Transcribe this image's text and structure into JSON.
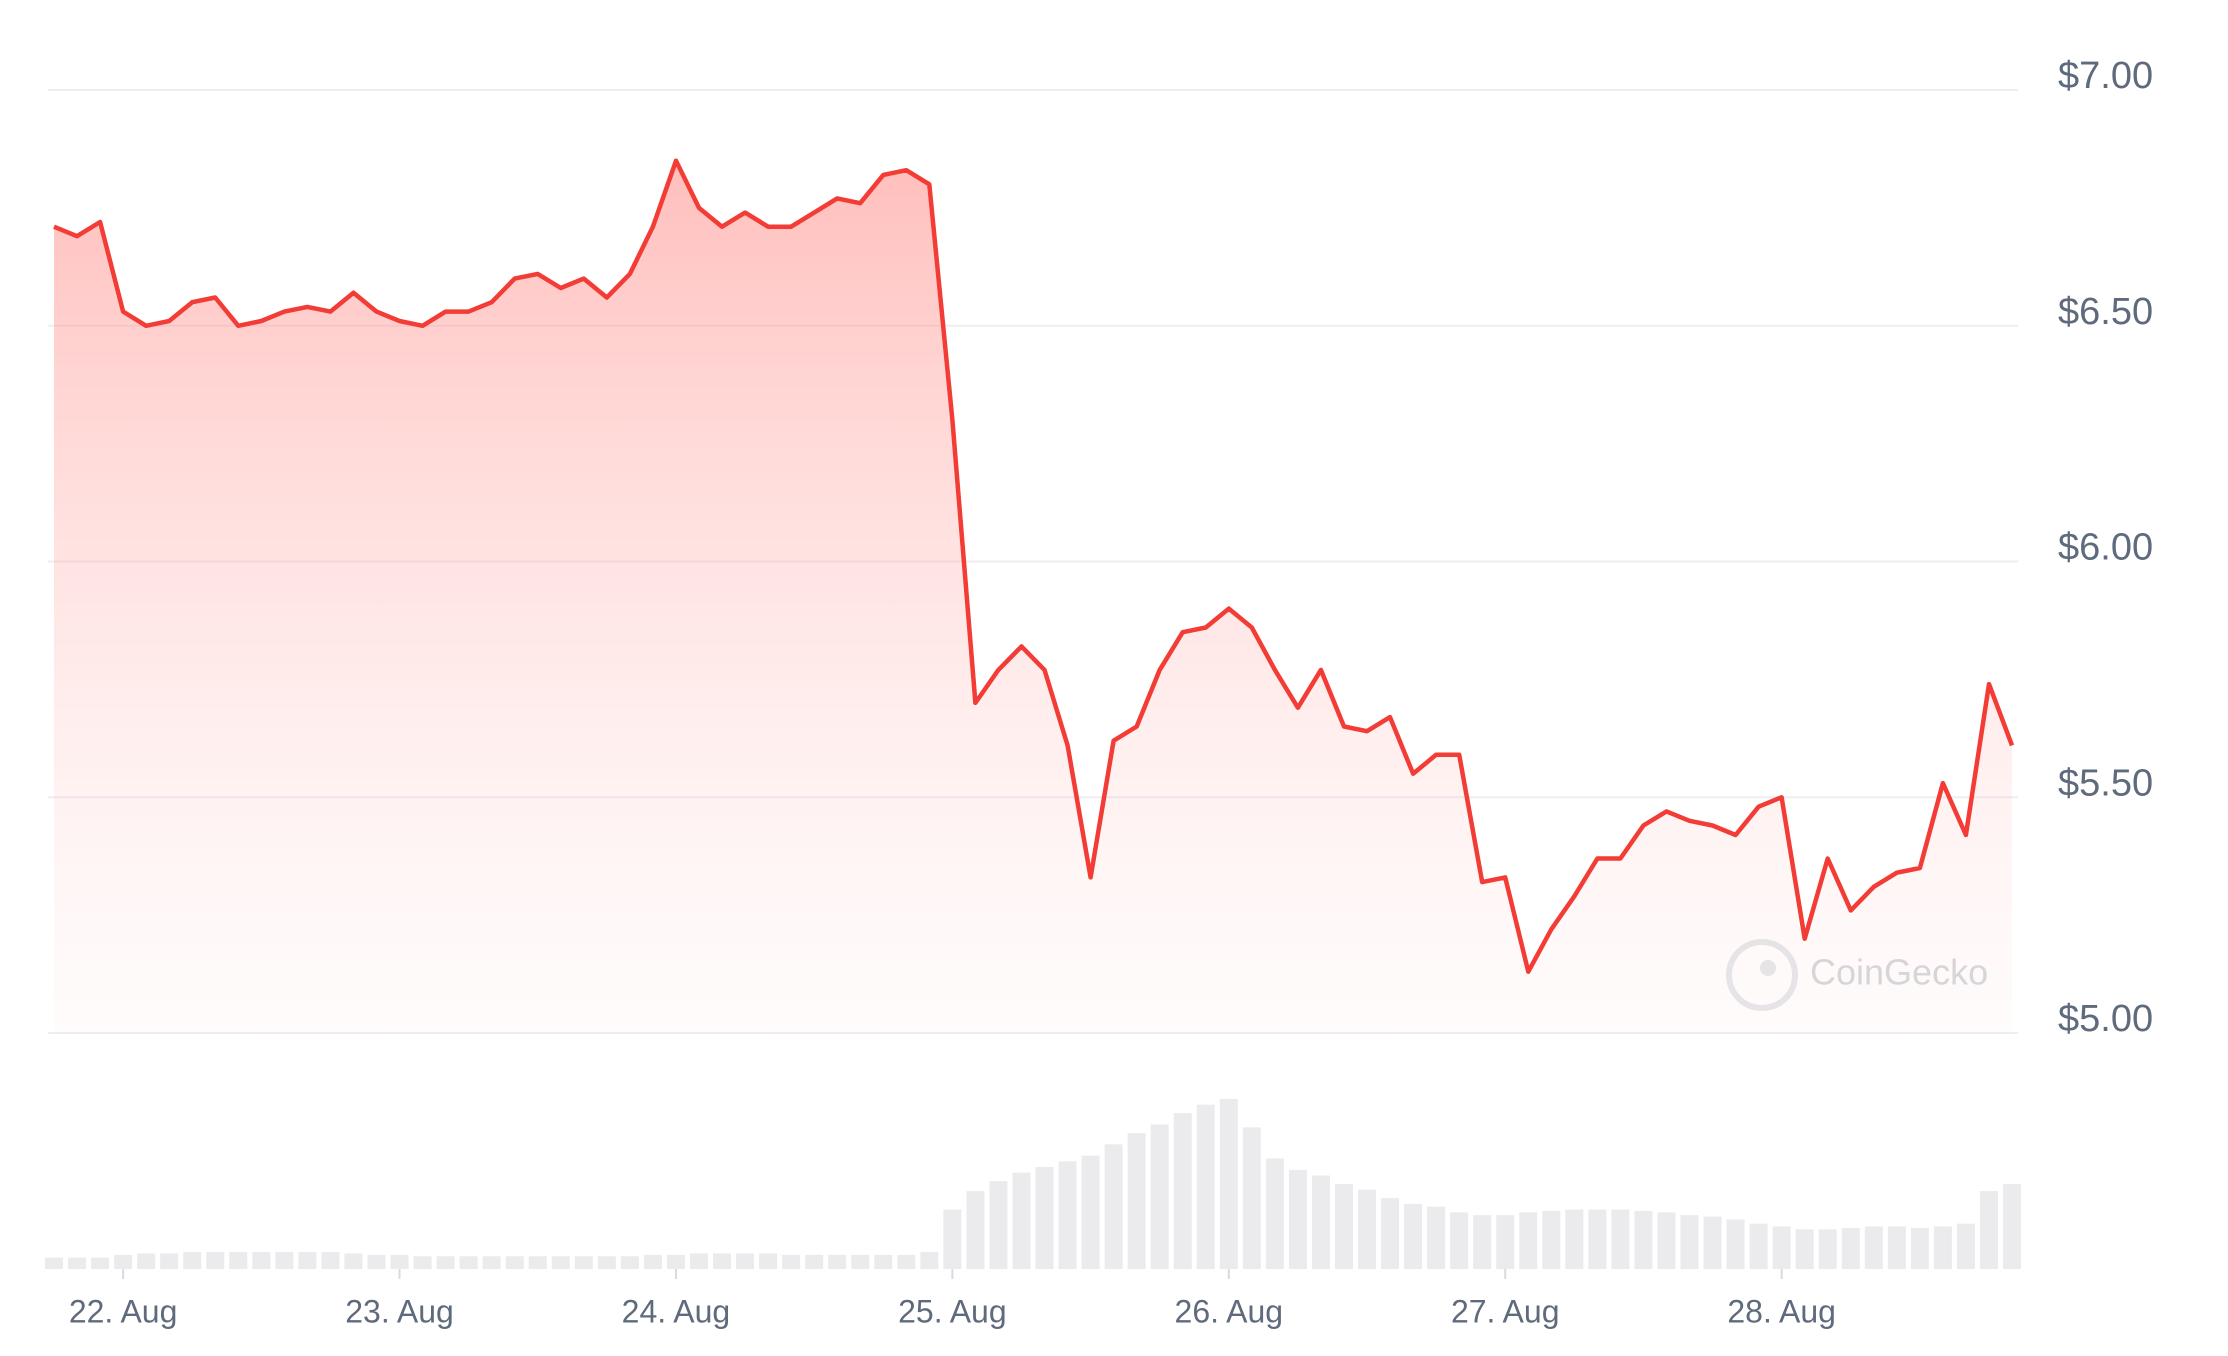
{
  "chart_data": {
    "type": "line",
    "categories": [
      null,
      null,
      null,
      "22. Aug",
      null,
      null,
      null,
      null,
      null,
      null,
      null,
      null,
      null,
      null,
      null,
      "23. Aug",
      null,
      null,
      null,
      null,
      null,
      null,
      null,
      null,
      null,
      null,
      null,
      "24. Aug",
      null,
      null,
      null,
      null,
      null,
      null,
      null,
      null,
      null,
      null,
      null,
      "25. Aug",
      null,
      null,
      null,
      null,
      null,
      null,
      null,
      null,
      null,
      null,
      null,
      "26. Aug",
      null,
      null,
      null,
      null,
      null,
      null,
      null,
      null,
      null,
      null,
      null,
      "27. Aug",
      null,
      null,
      null,
      null,
      null,
      null,
      null,
      null,
      null,
      null,
      null,
      "28. Aug",
      null,
      null,
      null,
      null,
      null,
      null,
      null,
      null,
      null,
      null
    ],
    "series": [
      {
        "color": "#f23c35",
        "values": [
          6.71,
          6.69,
          6.72,
          6.53,
          6.5,
          6.51,
          6.55,
          6.56,
          6.5,
          6.51,
          6.53,
          6.54,
          6.53,
          6.57,
          6.53,
          6.51,
          6.5,
          6.53,
          6.53,
          6.55,
          6.6,
          6.61,
          6.58,
          6.6,
          6.56,
          6.61,
          6.71,
          6.85,
          6.75,
          6.71,
          6.74,
          6.71,
          6.71,
          6.74,
          6.77,
          6.76,
          6.82,
          6.83,
          6.8,
          6.3,
          5.7,
          5.77,
          5.82,
          5.77,
          5.61,
          5.33,
          5.62,
          5.65,
          5.77,
          5.85,
          5.86,
          5.9,
          5.86,
          5.77,
          5.69,
          5.77,
          5.65,
          5.64,
          5.67,
          5.55,
          5.59,
          5.59,
          5.32,
          5.33,
          5.13,
          5.22,
          5.29,
          5.37,
          5.37,
          5.44,
          5.47,
          5.45,
          5.44,
          5.42,
          5.48,
          5.5,
          5.2,
          5.37,
          5.26,
          5.31,
          5.34,
          5.35,
          5.53,
          5.42,
          5.74,
          5.61
        ]
      }
    ],
    "volume": {
      "color": "#ebebee",
      "values": [
        8,
        8,
        8,
        10,
        11,
        11,
        12,
        12,
        12,
        12,
        12,
        12,
        12,
        11,
        10,
        10,
        9,
        9,
        9,
        9,
        9,
        9,
        9,
        9,
        9,
        9,
        10,
        10,
        11,
        11,
        11,
        11,
        10,
        10,
        10,
        10,
        10,
        10,
        12,
        42,
        55,
        62,
        68,
        72,
        76,
        80,
        88,
        96,
        102,
        110,
        116,
        120,
        100,
        78,
        70,
        66,
        60,
        56,
        50,
        46,
        44,
        40,
        38,
        38,
        40,
        41,
        42,
        42,
        42,
        41,
        40,
        38,
        37,
        35,
        32,
        30,
        28,
        28,
        29,
        30,
        30,
        29,
        30,
        32,
        55,
        60
      ]
    },
    "ylim": [
      5,
      7
    ],
    "yticks": [
      {
        "value": 5,
        "label": "$5.00"
      },
      {
        "value": 5.5,
        "label": "$5.50"
      },
      {
        "value": 6,
        "label": "$6.00"
      },
      {
        "value": 6.5,
        "label": "$6.50"
      },
      {
        "value": 7,
        "label": "$7.00"
      }
    ],
    "grid": true,
    "watermark": "CoinGecko"
  }
}
